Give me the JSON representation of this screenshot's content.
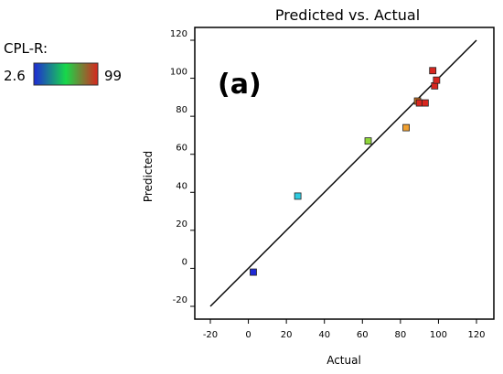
{
  "legend": {
    "title": "CPL-R:",
    "min_label": "2.6",
    "max_label": "99",
    "gradient_colors": [
      "#1f2ad6",
      "#17d84a",
      "#d8261f"
    ]
  },
  "chart_data": {
    "type": "scatter",
    "title": "Predicted vs. Actual",
    "annotation": "(a)",
    "xlabel": "Actual",
    "ylabel": "Predicted",
    "xlim": [
      -20,
      120
    ],
    "ylim": [
      -20,
      120
    ],
    "xticks": [
      -20,
      0,
      20,
      40,
      60,
      80,
      100,
      120
    ],
    "yticks": [
      -20,
      0,
      20,
      40,
      60,
      80,
      100,
      120
    ],
    "grid": false,
    "reference_line": {
      "from": [
        -20,
        -20
      ],
      "to": [
        120,
        120
      ]
    },
    "points": [
      {
        "x": 2.6,
        "y": -2,
        "color": "#1f2ad6"
      },
      {
        "x": 26,
        "y": 38,
        "color": "#2ecbe0"
      },
      {
        "x": 63,
        "y": 67,
        "color": "#8fd63a"
      },
      {
        "x": 83,
        "y": 74,
        "color": "#f0a030"
      },
      {
        "x": 89,
        "y": 88,
        "color": "#c8701e"
      },
      {
        "x": 90,
        "y": 87,
        "color": "#d8261f"
      },
      {
        "x": 93,
        "y": 87,
        "color": "#d8261f"
      },
      {
        "x": 97,
        "y": 104,
        "color": "#d8261f"
      },
      {
        "x": 98,
        "y": 96,
        "color": "#d8261f"
      },
      {
        "x": 99,
        "y": 99,
        "color": "#d8261f"
      }
    ]
  }
}
